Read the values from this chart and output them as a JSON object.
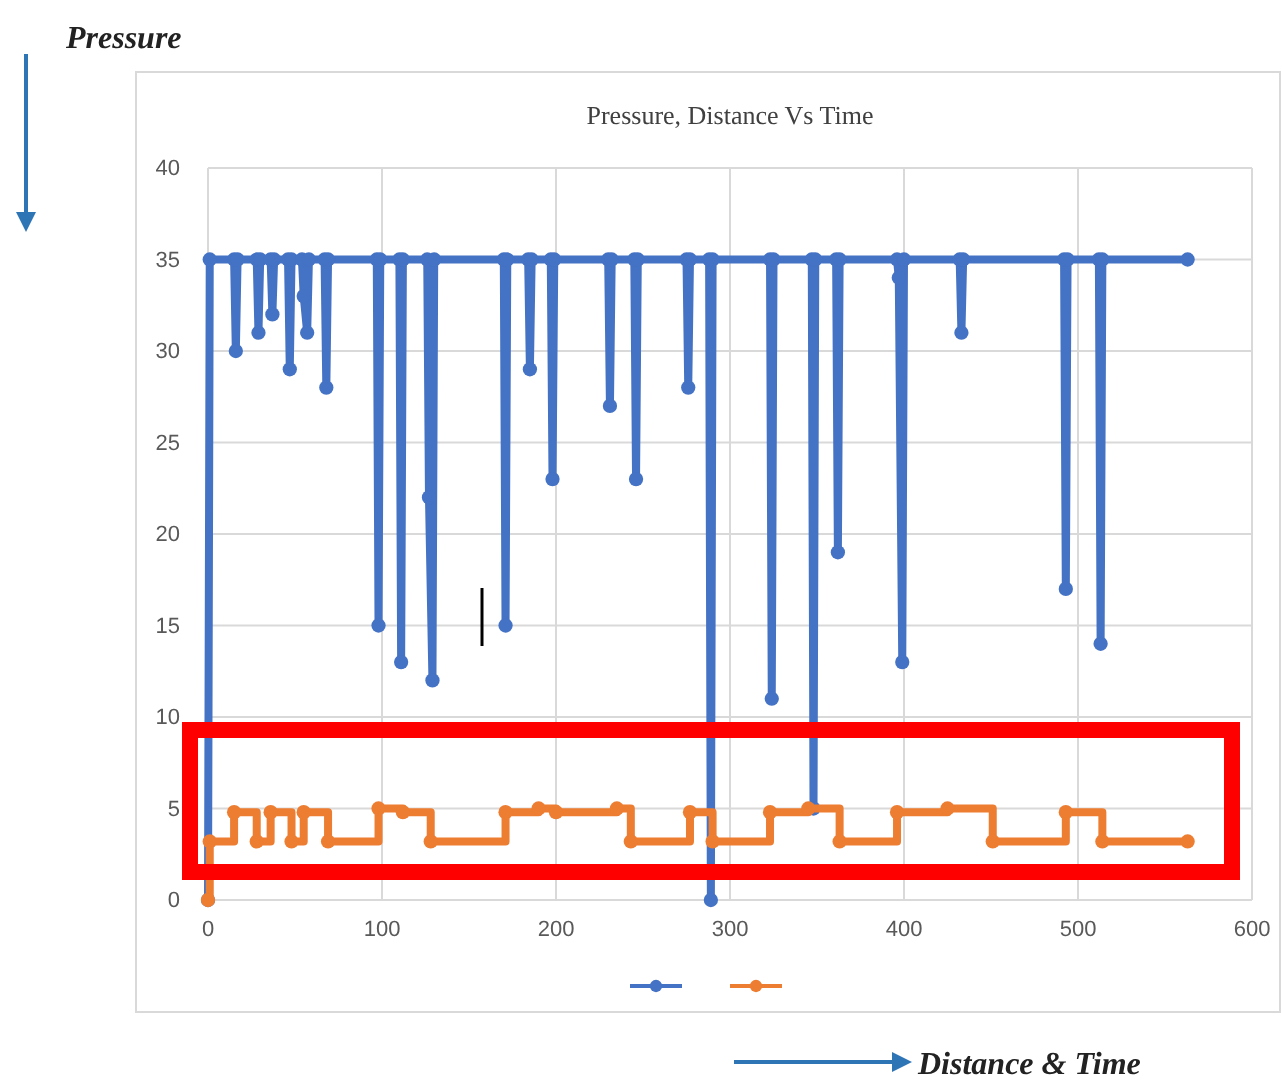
{
  "chart_data": {
    "type": "line",
    "title": "Pressure, Distance Vs Time",
    "xlabel": "Distance & Time",
    "ylabel": "Pressure",
    "xlim": [
      0,
      600
    ],
    "xticks": [
      0,
      100,
      200,
      300,
      400,
      500,
      600
    ],
    "ylim": [
      0,
      40
    ],
    "yticks": [
      0,
      5,
      10,
      15,
      20,
      25,
      30,
      35,
      40
    ],
    "grid": true,
    "marker": "circle",
    "series": [
      {
        "color": "#4472c4",
        "x": [
          0,
          1,
          15,
          16,
          17,
          28,
          29,
          30,
          36,
          37,
          38,
          46,
          47,
          48,
          54,
          55,
          57,
          58,
          67,
          68,
          69,
          97,
          98,
          99,
          110,
          111,
          112,
          126,
          127,
          129,
          130,
          170,
          171,
          172,
          184,
          185,
          186,
          197,
          198,
          199,
          230,
          231,
          232,
          245,
          246,
          247,
          275,
          276,
          277,
          288,
          289,
          290,
          323,
          324,
          325,
          347,
          348,
          349,
          361,
          362,
          363,
          396,
          397,
          399,
          400,
          432,
          433,
          434,
          492,
          493,
          494,
          512,
          513,
          514,
          563
        ],
        "values": [
          0,
          35,
          35,
          30,
          35,
          35,
          31,
          35,
          35,
          32,
          35,
          35,
          29,
          35,
          35,
          33,
          31,
          35,
          35,
          28,
          35,
          35,
          15,
          35,
          35,
          13,
          35,
          35,
          22,
          12,
          35,
          35,
          15,
          35,
          35,
          29,
          35,
          35,
          23,
          35,
          35,
          27,
          35,
          35,
          23,
          35,
          35,
          28,
          35,
          35,
          0,
          35,
          35,
          11,
          35,
          35,
          5,
          35,
          35,
          19,
          35,
          35,
          34,
          13,
          35,
          35,
          31,
          35,
          35,
          17,
          35,
          35,
          14,
          35,
          35
        ]
      },
      {
        "type": "step",
        "color": "#ed7d31",
        "x": [
          0,
          1,
          15,
          28,
          36,
          48,
          55,
          69,
          98,
          112,
          128,
          171,
          190,
          200,
          235,
          243,
          277,
          290,
          323,
          345,
          363,
          396,
          425,
          451,
          493,
          514,
          563
        ],
        "values": [
          0,
          3.2,
          4.8,
          3.2,
          4.8,
          3.2,
          4.8,
          3.2,
          5,
          4.8,
          3.2,
          4.8,
          5,
          4.8,
          5,
          3.2,
          4.8,
          3.2,
          4.8,
          5,
          3.2,
          4.8,
          5,
          3.2,
          4.8,
          3.2,
          3.2
        ]
      }
    ]
  }
}
